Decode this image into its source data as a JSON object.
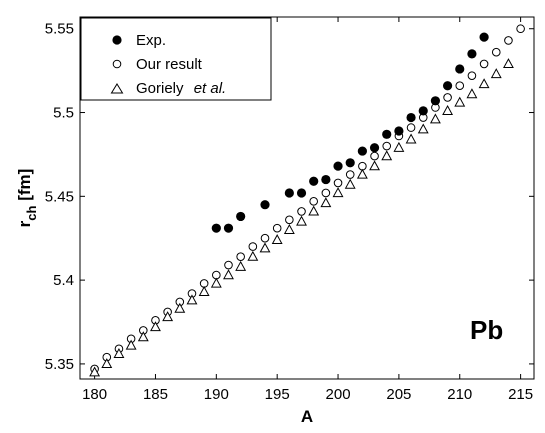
{
  "chart_data": {
    "type": "scatter",
    "xlabel": "A",
    "ylabel_main": "r",
    "ylabel_sub": "ch",
    "ylabel_unit": " [fm]",
    "xlim": [
      178.8,
      216.1
    ],
    "ylim": [
      5.341,
      5.557
    ],
    "xticks": [
      180,
      185,
      190,
      195,
      200,
      205,
      210,
      215
    ],
    "yticks": [
      5.35,
      5.4,
      5.45,
      5.5,
      5.55
    ],
    "yticks_labels": [
      "5.35",
      "5.4",
      "5.45",
      "5.5",
      "5.55"
    ],
    "annotation": "Pb",
    "grid": false,
    "legend_position": "top-left",
    "series": [
      {
        "name": "Exp.",
        "marker": "filled-circle",
        "points": [
          [
            190,
            5.431
          ],
          [
            191,
            5.431
          ],
          [
            192,
            5.438
          ],
          [
            194,
            5.445
          ],
          [
            196,
            5.452
          ],
          [
            197,
            5.452
          ],
          [
            198,
            5.459
          ],
          [
            199,
            5.46
          ],
          [
            200,
            5.468
          ],
          [
            201,
            5.47
          ],
          [
            202,
            5.477
          ],
          [
            203,
            5.479
          ],
          [
            204,
            5.487
          ],
          [
            205,
            5.489
          ],
          [
            206,
            5.497
          ],
          [
            207,
            5.501
          ],
          [
            208,
            5.507
          ],
          [
            209,
            5.516
          ],
          [
            210,
            5.526
          ],
          [
            211,
            5.535
          ],
          [
            212,
            5.545
          ]
        ]
      },
      {
        "name": "Our result",
        "marker": "open-circle",
        "points": [
          [
            180,
            5.347
          ],
          [
            181,
            5.354
          ],
          [
            182,
            5.359
          ],
          [
            183,
            5.365
          ],
          [
            184,
            5.37
          ],
          [
            185,
            5.376
          ],
          [
            186,
            5.381
          ],
          [
            187,
            5.387
          ],
          [
            188,
            5.392
          ],
          [
            189,
            5.398
          ],
          [
            190,
            5.403
          ],
          [
            191,
            5.409
          ],
          [
            192,
            5.414
          ],
          [
            193,
            5.42
          ],
          [
            194,
            5.425
          ],
          [
            195,
            5.431
          ],
          [
            196,
            5.436
          ],
          [
            197,
            5.441
          ],
          [
            198,
            5.447
          ],
          [
            199,
            5.452
          ],
          [
            200,
            5.458
          ],
          [
            201,
            5.463
          ],
          [
            202,
            5.468
          ],
          [
            203,
            5.474
          ],
          [
            204,
            5.48
          ],
          [
            205,
            5.486
          ],
          [
            206,
            5.491
          ],
          [
            207,
            5.497
          ],
          [
            208,
            5.503
          ],
          [
            209,
            5.509
          ],
          [
            210,
            5.516
          ],
          [
            211,
            5.522
          ],
          [
            212,
            5.529
          ],
          [
            213,
            5.536
          ],
          [
            214,
            5.543
          ],
          [
            215,
            5.55
          ]
        ]
      },
      {
        "name": "Goriely ",
        "name_italic": "et al.",
        "marker": "open-triangle",
        "points": [
          [
            180,
            5.345
          ],
          [
            181,
            5.35
          ],
          [
            182,
            5.356
          ],
          [
            183,
            5.361
          ],
          [
            184,
            5.366
          ],
          [
            185,
            5.372
          ],
          [
            186,
            5.378
          ],
          [
            187,
            5.383
          ],
          [
            188,
            5.388
          ],
          [
            189,
            5.393
          ],
          [
            190,
            5.398
          ],
          [
            191,
            5.403
          ],
          [
            192,
            5.408
          ],
          [
            193,
            5.414
          ],
          [
            194,
            5.419
          ],
          [
            195,
            5.424
          ],
          [
            196,
            5.43
          ],
          [
            197,
            5.435
          ],
          [
            198,
            5.441
          ],
          [
            199,
            5.446
          ],
          [
            200,
            5.452
          ],
          [
            201,
            5.457
          ],
          [
            202,
            5.463
          ],
          [
            203,
            5.468
          ],
          [
            204,
            5.474
          ],
          [
            205,
            5.479
          ],
          [
            206,
            5.484
          ],
          [
            207,
            5.49
          ],
          [
            208,
            5.496
          ],
          [
            209,
            5.501
          ],
          [
            210,
            5.506
          ],
          [
            211,
            5.511
          ],
          [
            212,
            5.517
          ],
          [
            213,
            5.523
          ],
          [
            214,
            5.529
          ]
        ]
      }
    ]
  }
}
